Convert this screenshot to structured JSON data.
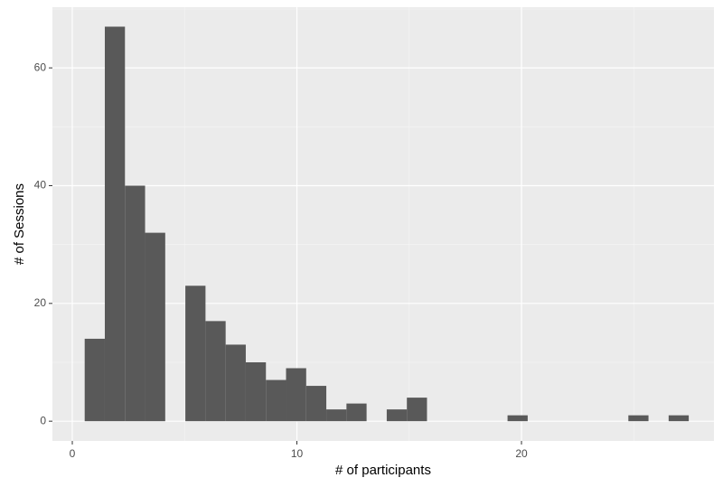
{
  "chart_data": {
    "type": "histogram",
    "x_label": "# of participants",
    "y_label": "# of Sessions",
    "bins": [
      0.552,
      1.448,
      2.345,
      3.241,
      4.138,
      5.034,
      5.931,
      6.828,
      7.724,
      8.621,
      9.517,
      10.414,
      11.31,
      12.207,
      13.103,
      14.0,
      14.897,
      15.793,
      16.69,
      17.586,
      18.483,
      19.379,
      20.276,
      21.172,
      22.069,
      22.966,
      23.862,
      24.759,
      25.655,
      26.552,
      27.448
    ],
    "values": [
      14,
      67,
      40,
      32,
      0,
      23,
      17,
      13,
      10,
      7,
      9,
      6,
      2,
      3,
      0,
      2,
      4,
      0,
      0,
      0,
      0,
      1,
      0,
      0,
      0,
      0,
      0,
      1,
      0,
      1
    ],
    "color": "#595959",
    "xlim": [
      -0.885,
      28.57
    ],
    "ylim": [
      -3.35,
      70.3
    ],
    "xticks": [
      0,
      10,
      20
    ],
    "yticks": [
      0,
      20,
      40,
      60
    ],
    "grid": true
  }
}
